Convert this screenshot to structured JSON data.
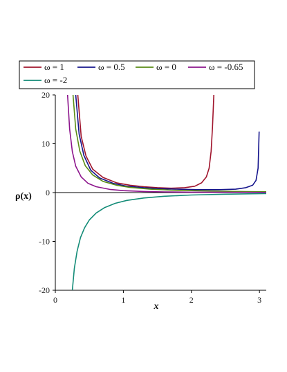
{
  "chart_data": {
    "type": "line",
    "xlabel": "x",
    "ylabel": "ρ(x)",
    "xlim": [
      0,
      3.1
    ],
    "ylim": [
      -20,
      20
    ],
    "x_ticks": [
      "0",
      "1",
      "2",
      "3"
    ],
    "y_ticks": [
      "-20",
      "-10",
      "0",
      "10",
      "20"
    ],
    "x_tick_values": [
      0,
      1,
      2,
      3
    ],
    "y_tick_values": [
      -20,
      -10,
      0,
      10,
      20
    ],
    "legend_position": "top",
    "series": [
      {
        "name": "ω = 1",
        "color": "#a0142c",
        "x": [
          0.33,
          0.38,
          0.45,
          0.55,
          0.7,
          0.9,
          1.1,
          1.3,
          1.5,
          1.7,
          1.9,
          2.05,
          2.15,
          2.22,
          2.26,
          2.29,
          2.31,
          2.33
        ],
        "y": [
          20,
          11.5,
          7.5,
          4.8,
          3.1,
          2.0,
          1.5,
          1.2,
          1.0,
          0.9,
          1.0,
          1.3,
          2.0,
          3.2,
          5.0,
          8.5,
          13.5,
          20
        ]
      },
      {
        "name": "ω = 0.5",
        "color": "#14148c",
        "x": [
          0.3,
          0.35,
          0.42,
          0.52,
          0.65,
          0.85,
          1.05,
          1.3,
          1.55,
          1.8,
          2.1,
          2.4,
          2.65,
          2.8,
          2.9,
          2.95,
          2.98,
          2.995
        ],
        "y": [
          20,
          12.0,
          7.6,
          4.6,
          3.0,
          1.9,
          1.3,
          1.0,
          0.8,
          0.7,
          0.6,
          0.6,
          0.7,
          1.0,
          1.5,
          2.5,
          5.0,
          12.5
        ]
      },
      {
        "name": "ω = 0",
        "color": "#5a8c14",
        "x": [
          0.26,
          0.3,
          0.36,
          0.44,
          0.55,
          0.7,
          0.9,
          1.1,
          1.4,
          1.7,
          2.0,
          2.4,
          2.8,
          3.1
        ],
        "y": [
          20,
          13.0,
          8.5,
          5.5,
          3.6,
          2.3,
          1.5,
          1.05,
          0.7,
          0.5,
          0.4,
          0.3,
          0.2,
          0.17
        ]
      },
      {
        "name": "ω = -0.65",
        "color": "#8c148c",
        "x": [
          0.18,
          0.21,
          0.25,
          0.3,
          0.38,
          0.48,
          0.6,
          0.8,
          1.0,
          1.3,
          1.6,
          2.0,
          2.5,
          3.1
        ],
        "y": [
          20,
          13.0,
          8.4,
          5.4,
          3.2,
          1.9,
          1.2,
          0.65,
          0.4,
          0.22,
          0.14,
          0.08,
          0.05,
          0.03
        ]
      },
      {
        "name": "ω = -2",
        "color": "#148c78",
        "x": [
          0.25,
          0.28,
          0.32,
          0.37,
          0.43,
          0.5,
          0.6,
          0.72,
          0.88,
          1.05,
          1.3,
          1.6,
          2.0,
          2.5,
          3.1
        ],
        "y": [
          -20,
          -15.5,
          -12.0,
          -9.2,
          -7.2,
          -5.6,
          -4.2,
          -3.1,
          -2.2,
          -1.6,
          -1.1,
          -0.75,
          -0.5,
          -0.32,
          -0.2
        ]
      }
    ]
  }
}
